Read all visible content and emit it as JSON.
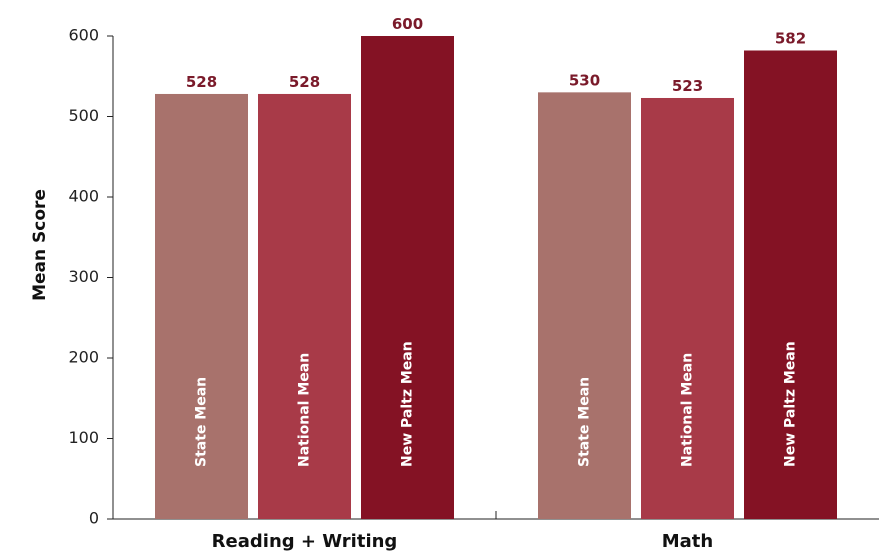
{
  "chart_data": {
    "type": "bar",
    "categories": [
      "Reading + Writing",
      "Math"
    ],
    "series": [
      {
        "name": "State Mean",
        "values": [
          528,
          530
        ],
        "color": "#a8726c"
      },
      {
        "name": "National Mean",
        "values": [
          528,
          523
        ],
        "color": "#a83a48"
      },
      {
        "name": "New Paltz Mean",
        "values": [
          600,
          582
        ],
        "color": "#841224"
      }
    ],
    "xlabel": "",
    "ylabel": "Mean Score",
    "ylim": [
      0,
      600
    ],
    "yticks": [
      0,
      100,
      200,
      300,
      400,
      500,
      600
    ],
    "value_label_color": "#7a1a2a",
    "grid": false,
    "legend": "none"
  }
}
